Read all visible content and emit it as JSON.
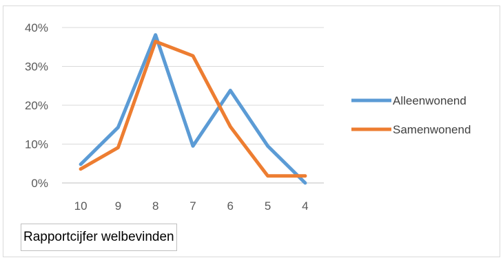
{
  "chart_data": {
    "type": "line",
    "categories": [
      "10",
      "9",
      "8",
      "7",
      "6",
      "5",
      "4"
    ],
    "yticks": [
      "0%",
      "10%",
      "20%",
      "30%",
      "40%"
    ],
    "ylim": [
      0,
      40
    ],
    "grid": true,
    "legend_position": "right",
    "xlabel": "Rapportcijfer welbevinden",
    "series": [
      {
        "name": "Alleenwonend",
        "color": "#5b9bd5",
        "values": [
          4.8,
          14.3,
          38.1,
          9.5,
          23.8,
          9.5,
          0.0
        ]
      },
      {
        "name": "Samenwonend",
        "color": "#ed7d31",
        "values": [
          3.6,
          9.1,
          36.4,
          32.7,
          14.5,
          1.8,
          1.8
        ]
      }
    ]
  }
}
